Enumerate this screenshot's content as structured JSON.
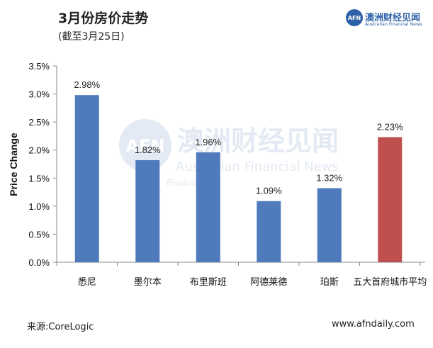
{
  "header": {
    "title": "3月份房价走势",
    "subtitle": "(截至3月25日)"
  },
  "logo": {
    "mark": "AFN",
    "name_cn": "澳洲财经见闻",
    "name_en": "Australian Financial News"
  },
  "watermark": {
    "mark": "AFN",
    "name_cn": "澳洲财经见闻",
    "name_en": "Australian Financial News",
    "sub_text": "Finabian"
  },
  "chart_data": {
    "type": "bar",
    "categories": [
      "悉尼",
      "墨尔本",
      "布里斯班",
      "阿德莱德",
      "珀斯",
      "五大首府城市平均"
    ],
    "values": [
      2.98,
      1.82,
      1.96,
      1.09,
      1.32,
      2.23
    ],
    "value_labels": [
      "2.98%",
      "1.82%",
      "1.96%",
      "1.09%",
      "1.32%",
      "2.23%"
    ],
    "ylabel": "Price Change",
    "xlabel": "",
    "ylim": [
      0,
      3.5
    ],
    "yticks": [
      0,
      0.5,
      1.0,
      1.5,
      2.0,
      2.5,
      3.0,
      3.5
    ],
    "ytick_labels": [
      "0.0%",
      "0.5%",
      "1.0%",
      "1.5%",
      "2.0%",
      "2.5%",
      "3.0%",
      "3.5%"
    ],
    "grid": false,
    "legend": "none",
    "colors": [
      "#4f7bbd",
      "#4f7bbd",
      "#4f7bbd",
      "#4f7bbd",
      "#4f7bbd",
      "#c0504d"
    ]
  },
  "footer": {
    "source": "来源:CoreLogic",
    "website": "www.afndaily.com"
  }
}
